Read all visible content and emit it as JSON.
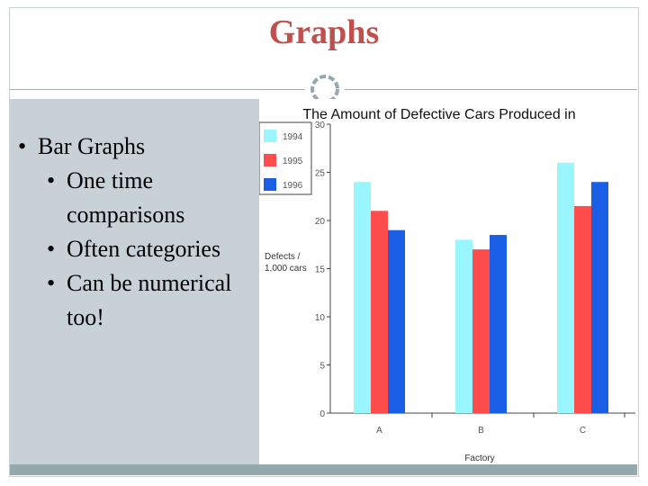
{
  "slide": {
    "title": "Graphs",
    "bullets": [
      {
        "level": 1,
        "text": "Bar Graphs"
      },
      {
        "level": 2,
        "text": "One time comparisons"
      },
      {
        "level": 2,
        "text": "Often categories"
      },
      {
        "level": 2,
        "text": "Can be numerical too!"
      }
    ],
    "bullet_glyph": "•"
  },
  "colors": {
    "title": "#c0504d",
    "panel": "#c7d1d6",
    "bar_1994": "#99f6ff",
    "bar_1995": "#ff4d4d",
    "bar_1996": "#1a5ee6"
  },
  "chart_data": {
    "type": "bar",
    "title": "The Amount of Defective Cars Produced in",
    "xlabel": "Factory",
    "ylabel": "Defects / 1,000 cars",
    "categories": [
      "A",
      "B",
      "C"
    ],
    "series": [
      {
        "name": "1994",
        "values": [
          24,
          18,
          26
        ]
      },
      {
        "name": "1995",
        "values": [
          21,
          17,
          21.5
        ]
      },
      {
        "name": "1996",
        "values": [
          19,
          18.5,
          24
        ]
      }
    ],
    "ylim": [
      0,
      30
    ],
    "yticks": [
      0,
      5,
      10,
      15,
      20,
      25,
      30
    ],
    "legend_position": "top-left",
    "grid": false
  }
}
